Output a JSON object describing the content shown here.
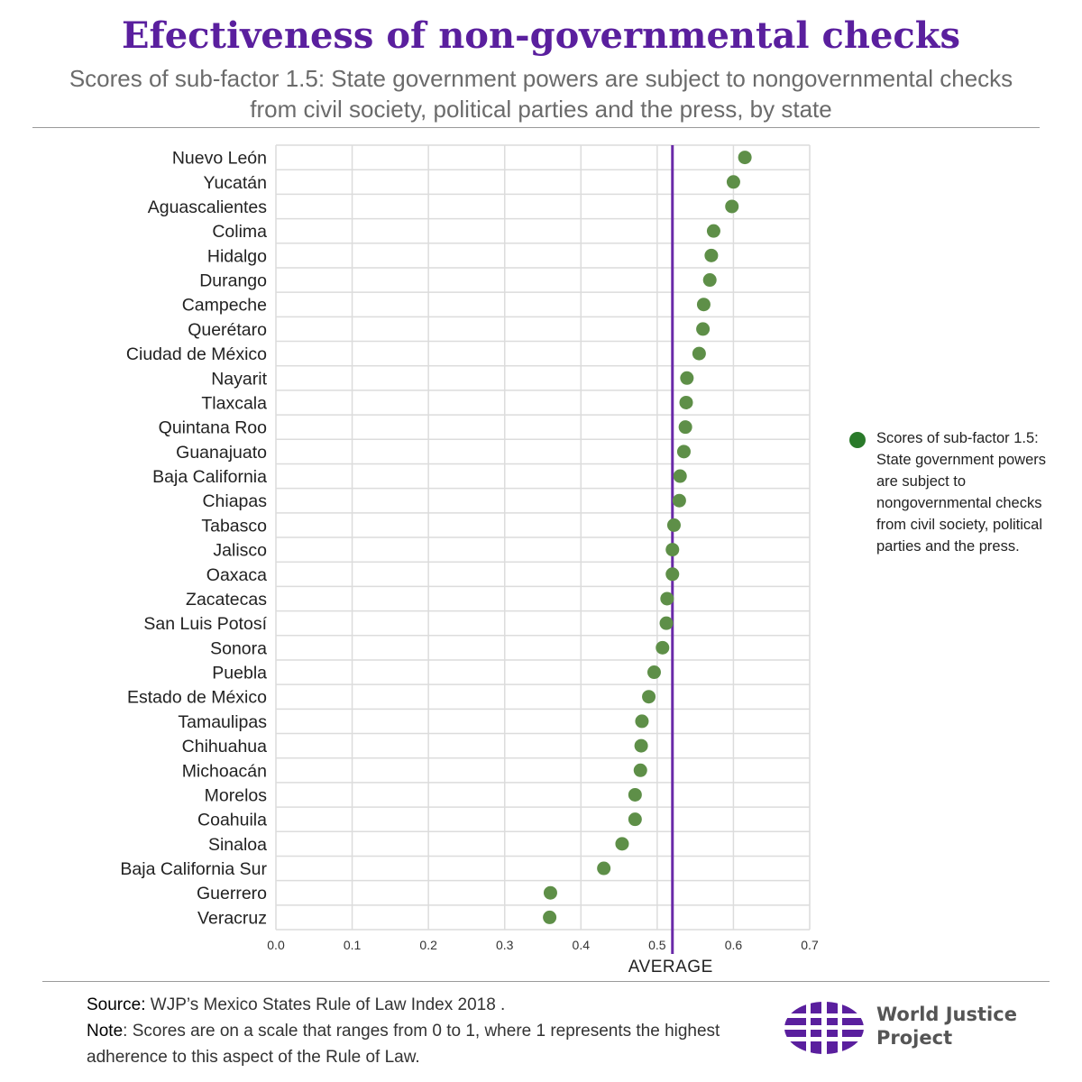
{
  "title": "Efectiveness of non-governmental checks",
  "subtitle_line1": "Scores of sub-factor 1.5: State government powers are subject to nongovernmental checks",
  "subtitle_line2": "from civil society, political parties and the press, by state",
  "average_label": "AVERAGE",
  "legend": {
    "label": "Scores of sub-factor 1.5: State government powers are subject to nongovernmental checks from civil society, political parties and the press.",
    "color": "#2a7a2a"
  },
  "footer": {
    "source_label": "Source:",
    "source_text": " WJP’s Mexico States Rule of Law Index 2018 .",
    "note_label": "Note",
    "note_text": ": Scores  are on a scale that ranges from 0 to 1, where 1 represents the highest adherence to this aspect of the Rule of Law."
  },
  "logo": {
    "line1": "World Justice",
    "line2": "Project",
    "color": "#5a1f9e"
  },
  "colors": {
    "title": "#5a1f9e",
    "dot": "#5e8f48",
    "average_line": "#6a2aa8",
    "grid": "#dcdcdc"
  },
  "chart_data": {
    "type": "scatter",
    "title": "Efectiveness of non-governmental checks",
    "xlim": [
      0.0,
      0.7
    ],
    "xticks": [
      "0.0",
      "0.1",
      "0.2",
      "0.3",
      "0.4",
      "0.5",
      "0.6",
      "0.7"
    ],
    "grid": true,
    "legend_position": "right",
    "average": 0.52,
    "categories": [
      "Nuevo León",
      "Yucatán",
      "Aguascalientes",
      "Colima",
      "Hidalgo",
      "Durango",
      "Campeche",
      "Querétaro",
      "Ciudad de México",
      "Nayarit",
      "Tlaxcala",
      "Quintana Roo",
      "Guanajuato",
      "Baja California",
      "Chiapas",
      "Tabasco",
      "Jalisco",
      "Oaxaca",
      "Zacatecas",
      "San Luis Potosí",
      "Sonora",
      "Puebla",
      "Estado de México",
      "Tamaulipas",
      "Chihuahua",
      "Michoacán",
      "Morelos",
      "Coahuila",
      "Sinaloa",
      "Baja California Sur",
      "Guerrero",
      "Veracruz"
    ],
    "series": [
      {
        "name": "Scores of sub-factor 1.5: State government powers are subject to nongovernmental checks from civil society, political parties and the press.",
        "values": [
          0.615,
          0.6,
          0.598,
          0.574,
          0.571,
          0.569,
          0.561,
          0.56,
          0.555,
          0.539,
          0.538,
          0.537,
          0.535,
          0.53,
          0.529,
          0.522,
          0.52,
          0.52,
          0.513,
          0.512,
          0.507,
          0.496,
          0.489,
          0.48,
          0.479,
          0.478,
          0.471,
          0.471,
          0.454,
          0.43,
          0.36,
          0.359
        ]
      }
    ]
  }
}
